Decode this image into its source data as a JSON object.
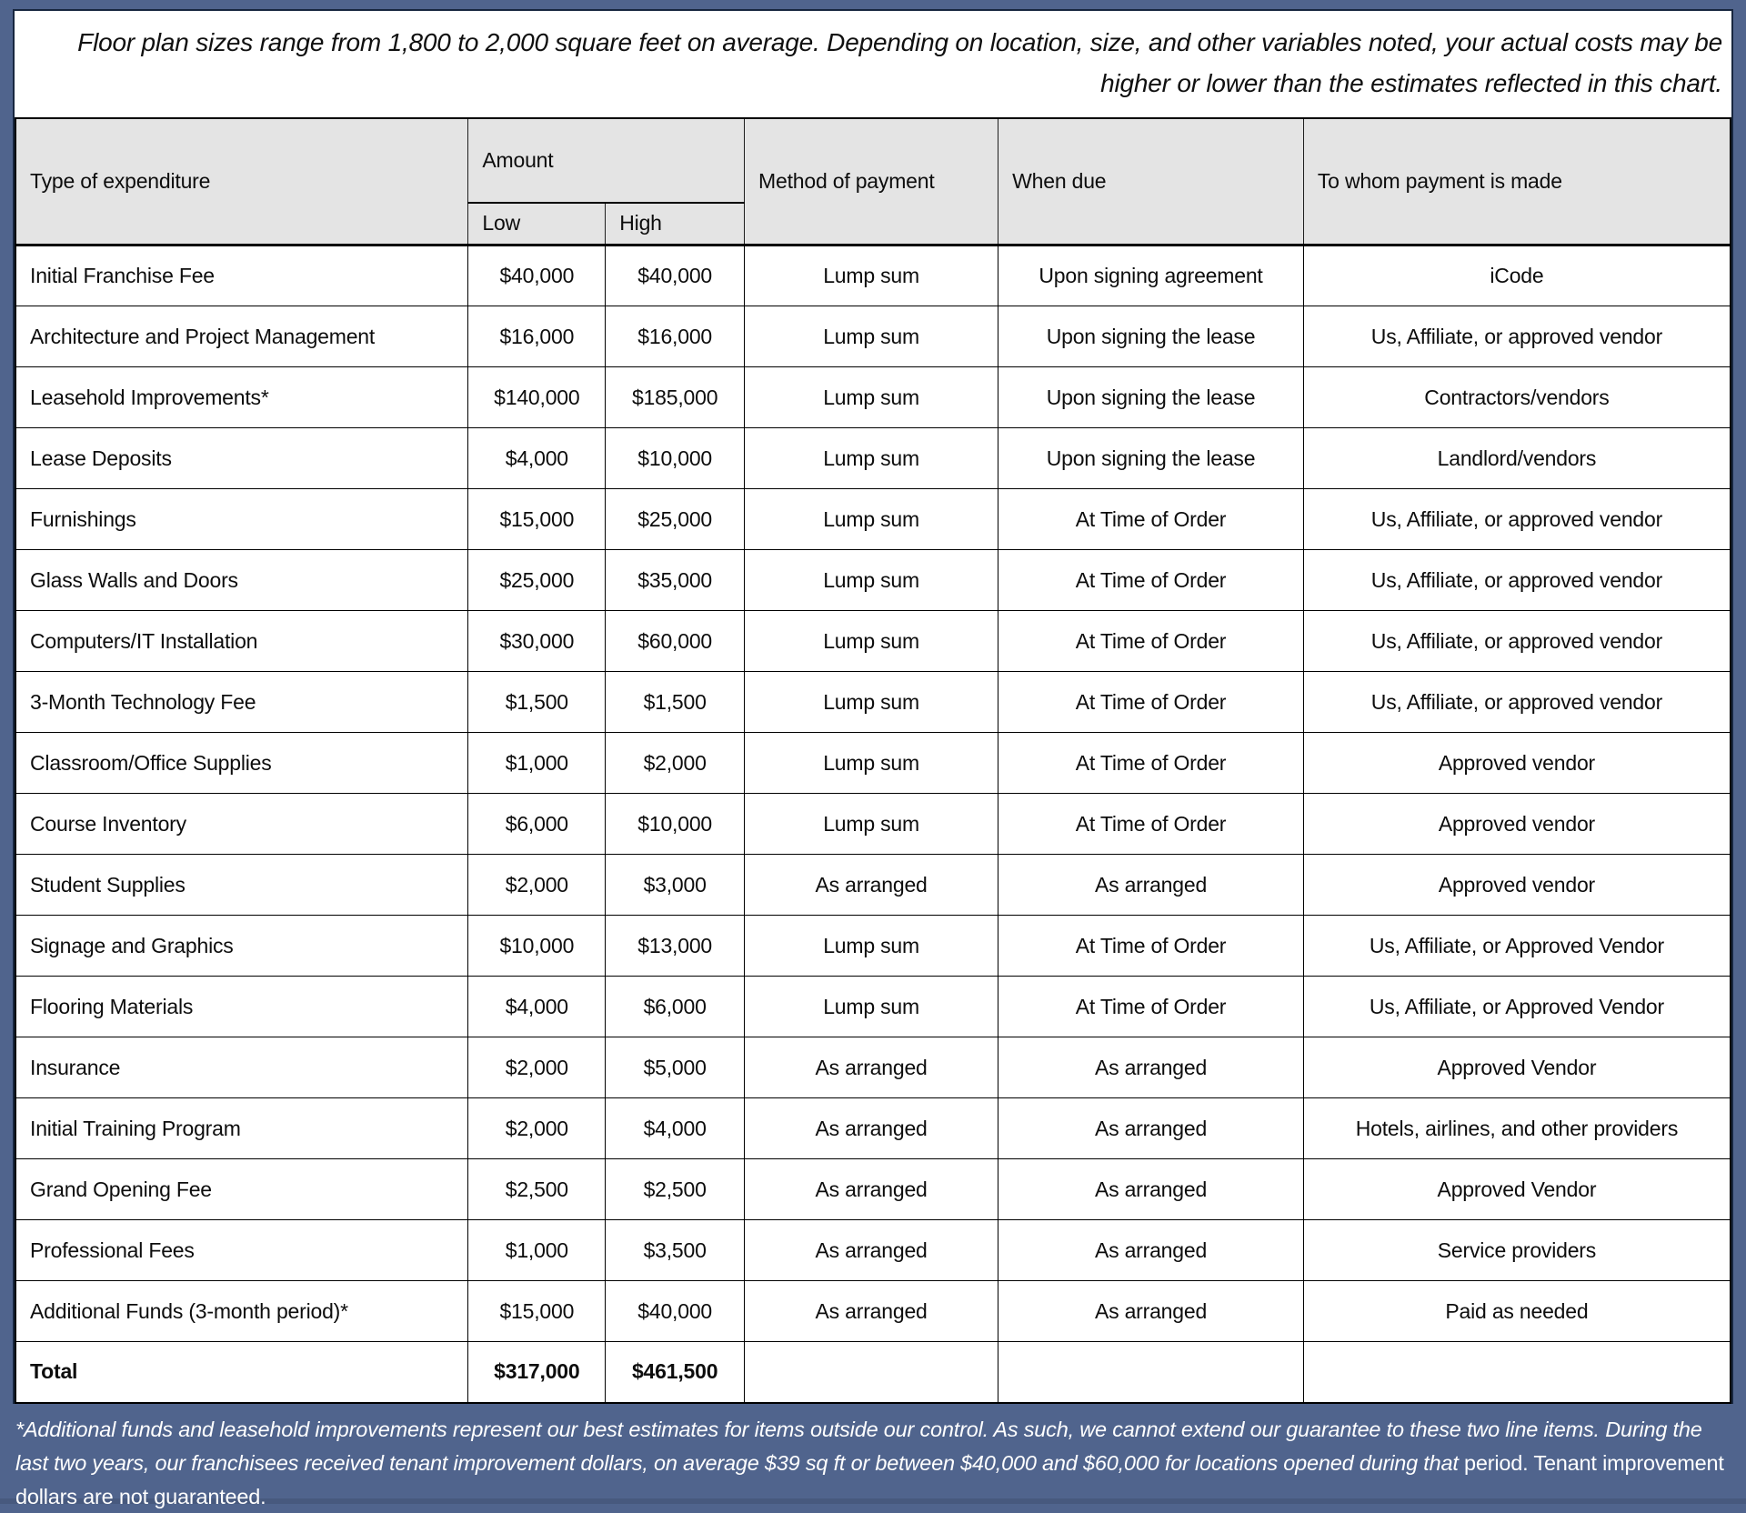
{
  "disclaimer": "Floor plan sizes range from 1,800 to 2,000 square feet on average. Depending on location, size, and other variables noted, your actual costs may be higher or lower than the estimates reflected in this chart.",
  "table": {
    "headers": {
      "expenditure": "Type of expenditure",
      "amount": "Amount",
      "low": "Low",
      "high": "High",
      "method": "Method of payment",
      "when_due": "When due",
      "payee": "To whom payment is made"
    },
    "rows": [
      {
        "expenditure": "Initial Franchise Fee",
        "low": "$40,000",
        "high": "$40,000",
        "method": "Lump sum",
        "when_due": "Upon signing agreement",
        "payee": "iCode"
      },
      {
        "expenditure": "Architecture and Project Management",
        "low": "$16,000",
        "high": "$16,000",
        "method": "Lump sum",
        "when_due": "Upon signing the lease",
        "payee": "Us, Affiliate, or approved vendor"
      },
      {
        "expenditure": "Leasehold Improvements*",
        "low": "$140,000",
        "high": "$185,000",
        "method": "Lump sum",
        "when_due": "Upon signing the lease",
        "payee": "Contractors/vendors"
      },
      {
        "expenditure": "Lease Deposits",
        "low": "$4,000",
        "high": "$10,000",
        "method": "Lump sum",
        "when_due": "Upon signing the lease",
        "payee": "Landlord/vendors"
      },
      {
        "expenditure": "Furnishings",
        "low": "$15,000",
        "high": "$25,000",
        "method": "Lump sum",
        "when_due": "At Time of Order",
        "payee": "Us, Affiliate, or approved vendor"
      },
      {
        "expenditure": "Glass Walls and Doors",
        "low": "$25,000",
        "high": "$35,000",
        "method": "Lump sum",
        "when_due": "At Time of Order",
        "payee": "Us, Affiliate, or approved vendor"
      },
      {
        "expenditure": "Computers/IT Installation",
        "low": "$30,000",
        "high": "$60,000",
        "method": "Lump sum",
        "when_due": "At Time of Order",
        "payee": "Us, Affiliate, or approved vendor"
      },
      {
        "expenditure": "3-Month Technology Fee",
        "low": "$1,500",
        "high": "$1,500",
        "method": "Lump sum",
        "when_due": "At Time of Order",
        "payee": "Us, Affiliate, or approved vendor"
      },
      {
        "expenditure": "Classroom/Office Supplies",
        "low": "$1,000",
        "high": "$2,000",
        "method": "Lump sum",
        "when_due": "At Time of Order",
        "payee": "Approved vendor"
      },
      {
        "expenditure": "Course Inventory",
        "low": "$6,000",
        "high": "$10,000",
        "method": "Lump sum",
        "when_due": "At Time of Order",
        "payee": "Approved vendor"
      },
      {
        "expenditure": "Student Supplies",
        "low": "$2,000",
        "high": "$3,000",
        "method": "As arranged",
        "when_due": "As arranged",
        "payee": "Approved vendor"
      },
      {
        "expenditure": "Signage and Graphics",
        "low": "$10,000",
        "high": "$13,000",
        "method": "Lump sum",
        "when_due": "At Time of Order",
        "payee": "Us, Affiliate, or Approved Vendor"
      },
      {
        "expenditure": "Flooring Materials",
        "low": "$4,000",
        "high": "$6,000",
        "method": "Lump sum",
        "when_due": "At Time of Order",
        "payee": "Us, Affiliate, or Approved Vendor"
      },
      {
        "expenditure": "Insurance",
        "low": "$2,000",
        "high": "$5,000",
        "method": "As arranged",
        "when_due": "As arranged",
        "payee": "Approved Vendor"
      },
      {
        "expenditure": "Initial Training Program",
        "low": "$2,000",
        "high": "$4,000",
        "method": "As arranged",
        "when_due": "As arranged",
        "payee": "Hotels, airlines, and other providers"
      },
      {
        "expenditure": "Grand Opening Fee",
        "low": "$2,500",
        "high": "$2,500",
        "method": "As arranged",
        "when_due": "As arranged",
        "payee": "Approved Vendor"
      },
      {
        "expenditure": "Professional Fees",
        "low": "$1,000",
        "high": "$3,500",
        "method": "As arranged",
        "when_due": "As arranged",
        "payee": "Service providers"
      },
      {
        "expenditure": "Additional Funds (3-month period)*",
        "low": "$15,000",
        "high": "$40,000",
        "method": "As arranged",
        "when_due": "As arranged",
        "payee": "Paid as needed"
      }
    ],
    "total": {
      "label": "Total",
      "low": "$317,000",
      "high": "$461,500"
    }
  },
  "footnote": {
    "italic_part": "*Additional funds and leasehold improvements represent our best estimates for items outside our control. As such, we cannot extend our guarantee to these two line items. During the last two years, our franchisees received tenant improvement dollars, on average $39 sq ft or between $40,000 and $60,000 for locations opened during that",
    "regular_part": " period. Tenant improvement dollars are not guaranteed."
  },
  "colors": {
    "frame": "#50648d",
    "frame_bottom": "#47597e",
    "header_bg": "#e4e4e4",
    "sheet_bg": "#ffffff",
    "grid_line": "#000000",
    "footnote_text": "#ffffff",
    "body_text": "#0d0d0d"
  }
}
